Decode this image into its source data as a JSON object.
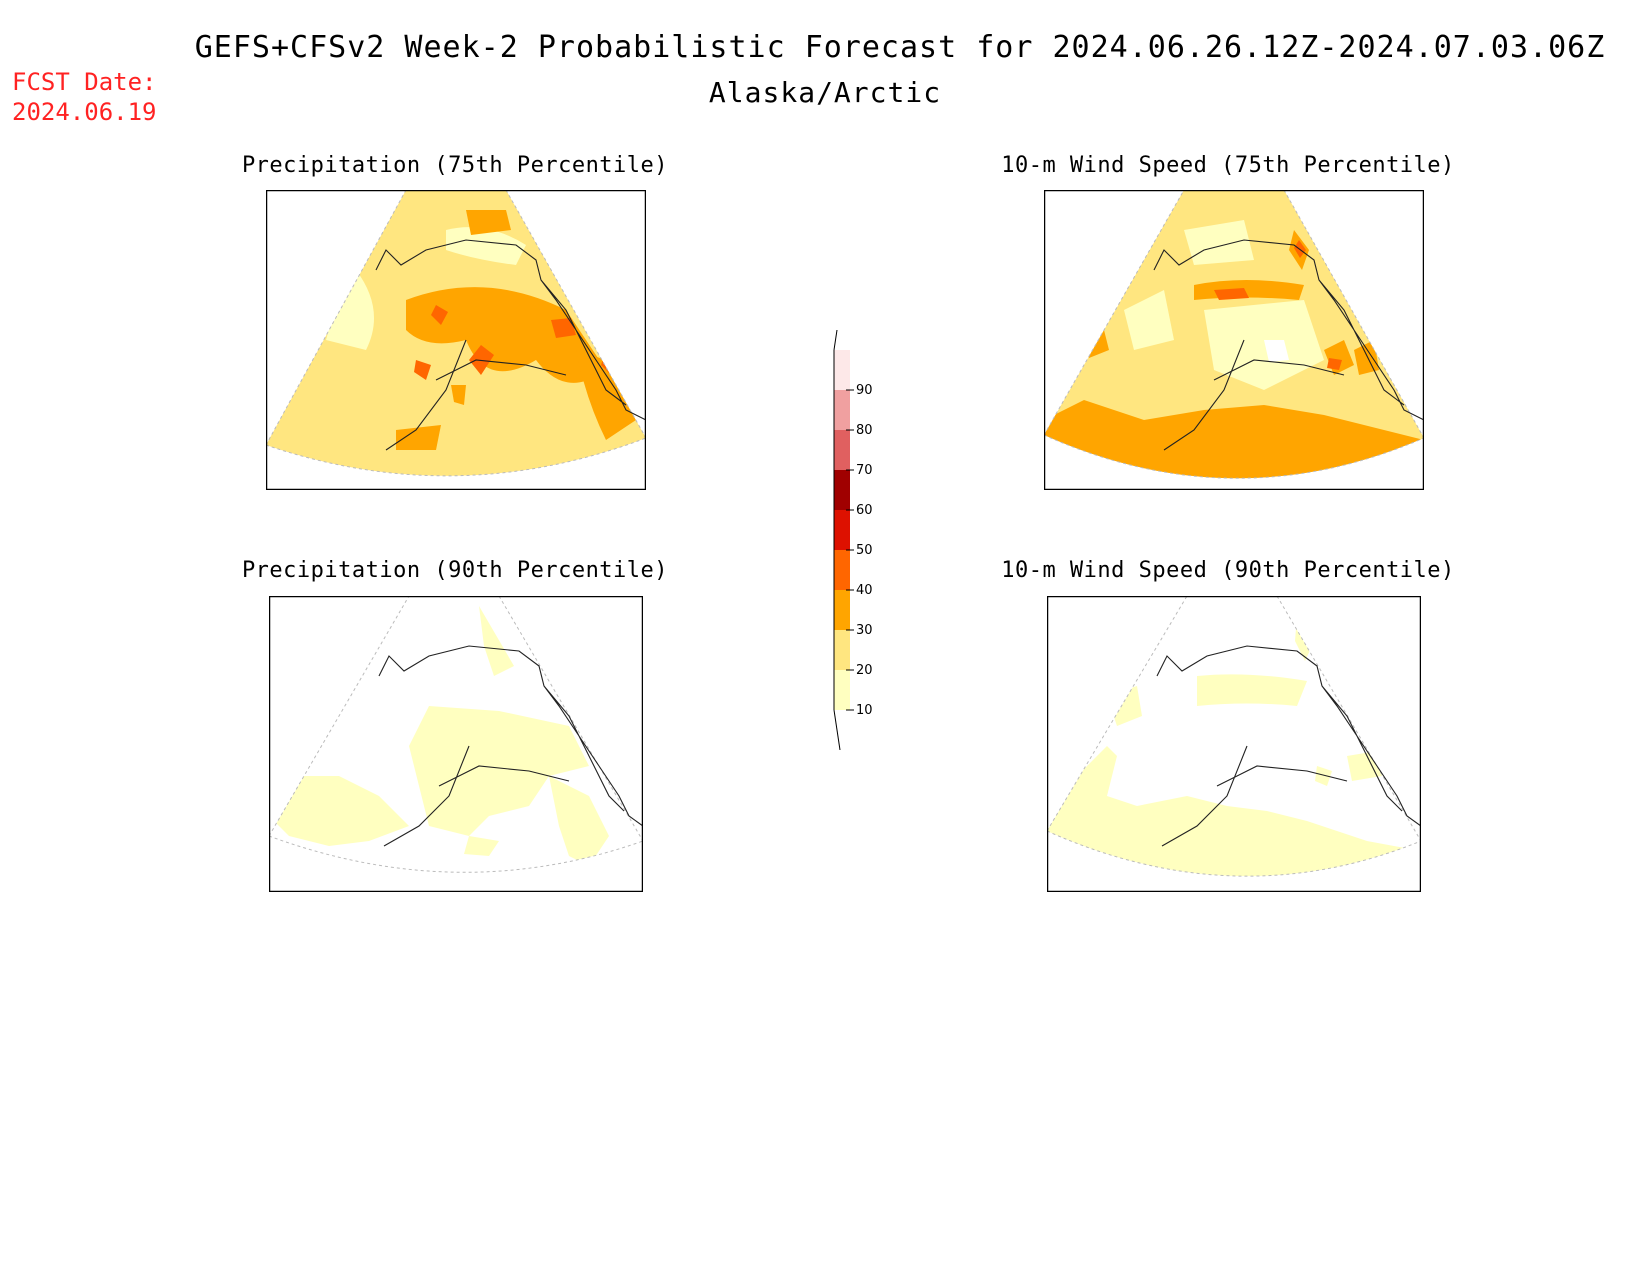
{
  "title": "GEFS+CFSv2 Week-2 Probabilistic Forecast for 2024.06.26.12Z-2024.07.03.06Z",
  "region": "Alaska/Arctic",
  "forecast": {
    "label": "FCST Date:",
    "date": "2024.06.19"
  },
  "panels": [
    {
      "id": "precip-75",
      "title": "Precipitation (75th Percentile)",
      "intensity": "high"
    },
    {
      "id": "wind-75",
      "title": "10-m Wind Speed (75th Percentile)",
      "intensity": "high"
    },
    {
      "id": "precip-90",
      "title": "Precipitation (90th Percentile)",
      "intensity": "low"
    },
    {
      "id": "wind-90",
      "title": "10-m Wind Speed (90th Percentile)",
      "intensity": "low"
    }
  ],
  "colorbar": {
    "levels": [
      "10",
      "20",
      "30",
      "40",
      "50",
      "60",
      "70",
      "80",
      "90"
    ],
    "colors": [
      "#ffffc0",
      "#ffe680",
      "#ffa500",
      "#ff6600",
      "#dd1100",
      "#a00000",
      "#e06060",
      "#f0a0a0",
      "#fde8e8"
    ]
  },
  "colors": {
    "fcst": "#ff2222",
    "light_yellow": "#ffffc0",
    "yellow": "#ffe680",
    "orange": "#ffa500",
    "dark_orange": "#ff6600"
  }
}
